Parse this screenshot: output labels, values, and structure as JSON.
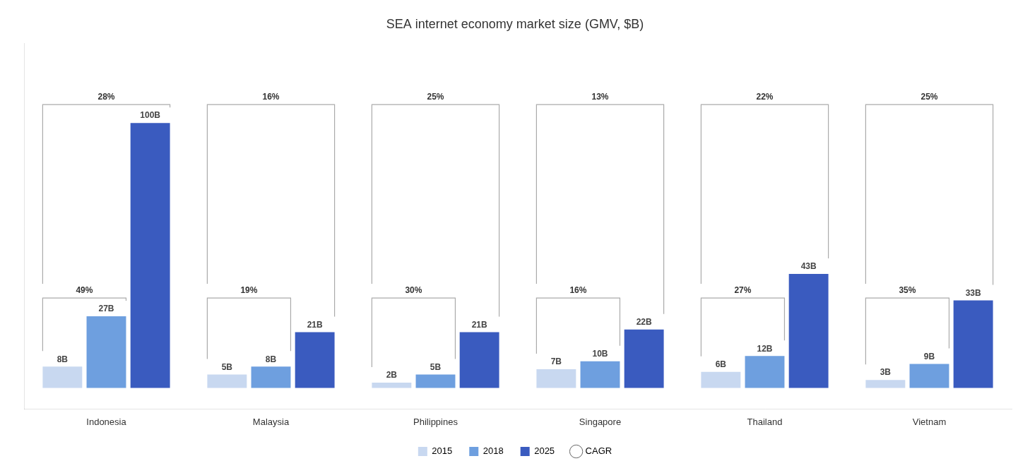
{
  "chart_data": {
    "type": "bar",
    "title": "SEA internet economy market size (GMV, $B)",
    "categories": [
      "Indonesia",
      "Malaysia",
      "Philippines",
      "Singapore",
      "Thailand",
      "Vietnam"
    ],
    "series": [
      {
        "name": "2015",
        "color": "#c8d8f0",
        "values": [
          8,
          5,
          2,
          7,
          6,
          3
        ],
        "value_labels": [
          "8B",
          "5B",
          "2B",
          "7B",
          "6B",
          "3B"
        ]
      },
      {
        "name": "2018",
        "color": "#6e9fdf",
        "values": [
          27,
          8,
          5,
          10,
          12,
          9
        ],
        "value_labels": [
          "27B",
          "8B",
          "5B",
          "10B",
          "12B",
          "9B"
        ]
      },
      {
        "name": "2025",
        "color": "#3a5bbf",
        "values": [
          100,
          21,
          21,
          22,
          43,
          33
        ],
        "value_labels": [
          "100B",
          "21B",
          "21B",
          "22B",
          "43B",
          "33B"
        ]
      }
    ],
    "annotations": {
      "name": "CAGR",
      "color": "#aaaaaa",
      "spans": [
        {
          "from": "2015",
          "to": "2018",
          "labels": [
            "49%",
            "19%",
            "30%",
            "16%",
            "27%",
            "35%"
          ]
        },
        {
          "from": "2015",
          "to": "2025",
          "labels": [
            "28%",
            "16%",
            "25%",
            "13%",
            "22%",
            "25%"
          ]
        }
      ]
    },
    "ylim": [
      -8,
      130
    ],
    "data_labels": true,
    "legend": "bottom",
    "grid": false,
    "tick_labels": "x"
  }
}
